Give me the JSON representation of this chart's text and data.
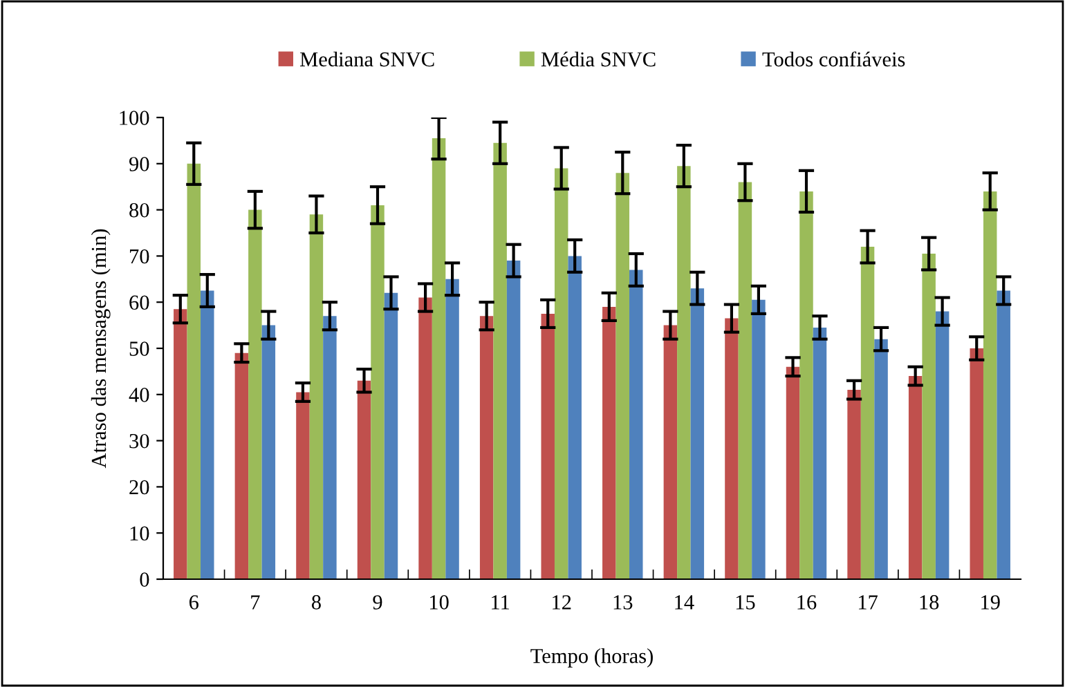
{
  "chart_data": {
    "type": "bar",
    "xlabel": "Tempo (horas)",
    "ylabel": "Atraso das mensagens (min)",
    "categories": [
      "6",
      "7",
      "8",
      "9",
      "10",
      "11",
      "12",
      "13",
      "14",
      "15",
      "16",
      "17",
      "18",
      "19"
    ],
    "series": [
      {
        "name": "Mediana SNVC",
        "color": "#c0504d",
        "values": [
          58.5,
          49,
          40.5,
          43,
          61,
          57,
          57.5,
          59,
          55,
          56.5,
          46,
          41,
          44,
          50
        ],
        "errors": [
          3,
          2,
          2,
          2.5,
          3,
          3,
          3,
          3,
          3,
          3,
          2,
          2,
          2,
          2.5
        ]
      },
      {
        "name": "Média SNVC",
        "color": "#9bbb59",
        "values": [
          90,
          80,
          79,
          81,
          95.5,
          94.5,
          89,
          88,
          89.5,
          86,
          84,
          72,
          70.5,
          84
        ],
        "errors": [
          4.5,
          4,
          4,
          4,
          4.5,
          4.5,
          4.5,
          4.5,
          4.5,
          4,
          4.5,
          3.5,
          3.5,
          4
        ]
      },
      {
        "name": "Todos confiáveis",
        "color": "#4f81bd",
        "values": [
          62.5,
          55,
          57,
          62,
          65,
          69,
          70,
          67,
          63,
          60.5,
          54.5,
          52,
          58,
          62.5
        ],
        "errors": [
          3.5,
          3,
          3,
          3.5,
          3.5,
          3.5,
          3.5,
          3.5,
          3.5,
          3,
          2.5,
          2.5,
          3,
          3
        ]
      }
    ],
    "ylim": [
      0,
      100
    ],
    "yticks": [
      0,
      10,
      20,
      30,
      40,
      50,
      60,
      70,
      80,
      90,
      100
    ],
    "grid": false,
    "legend": "top"
  }
}
